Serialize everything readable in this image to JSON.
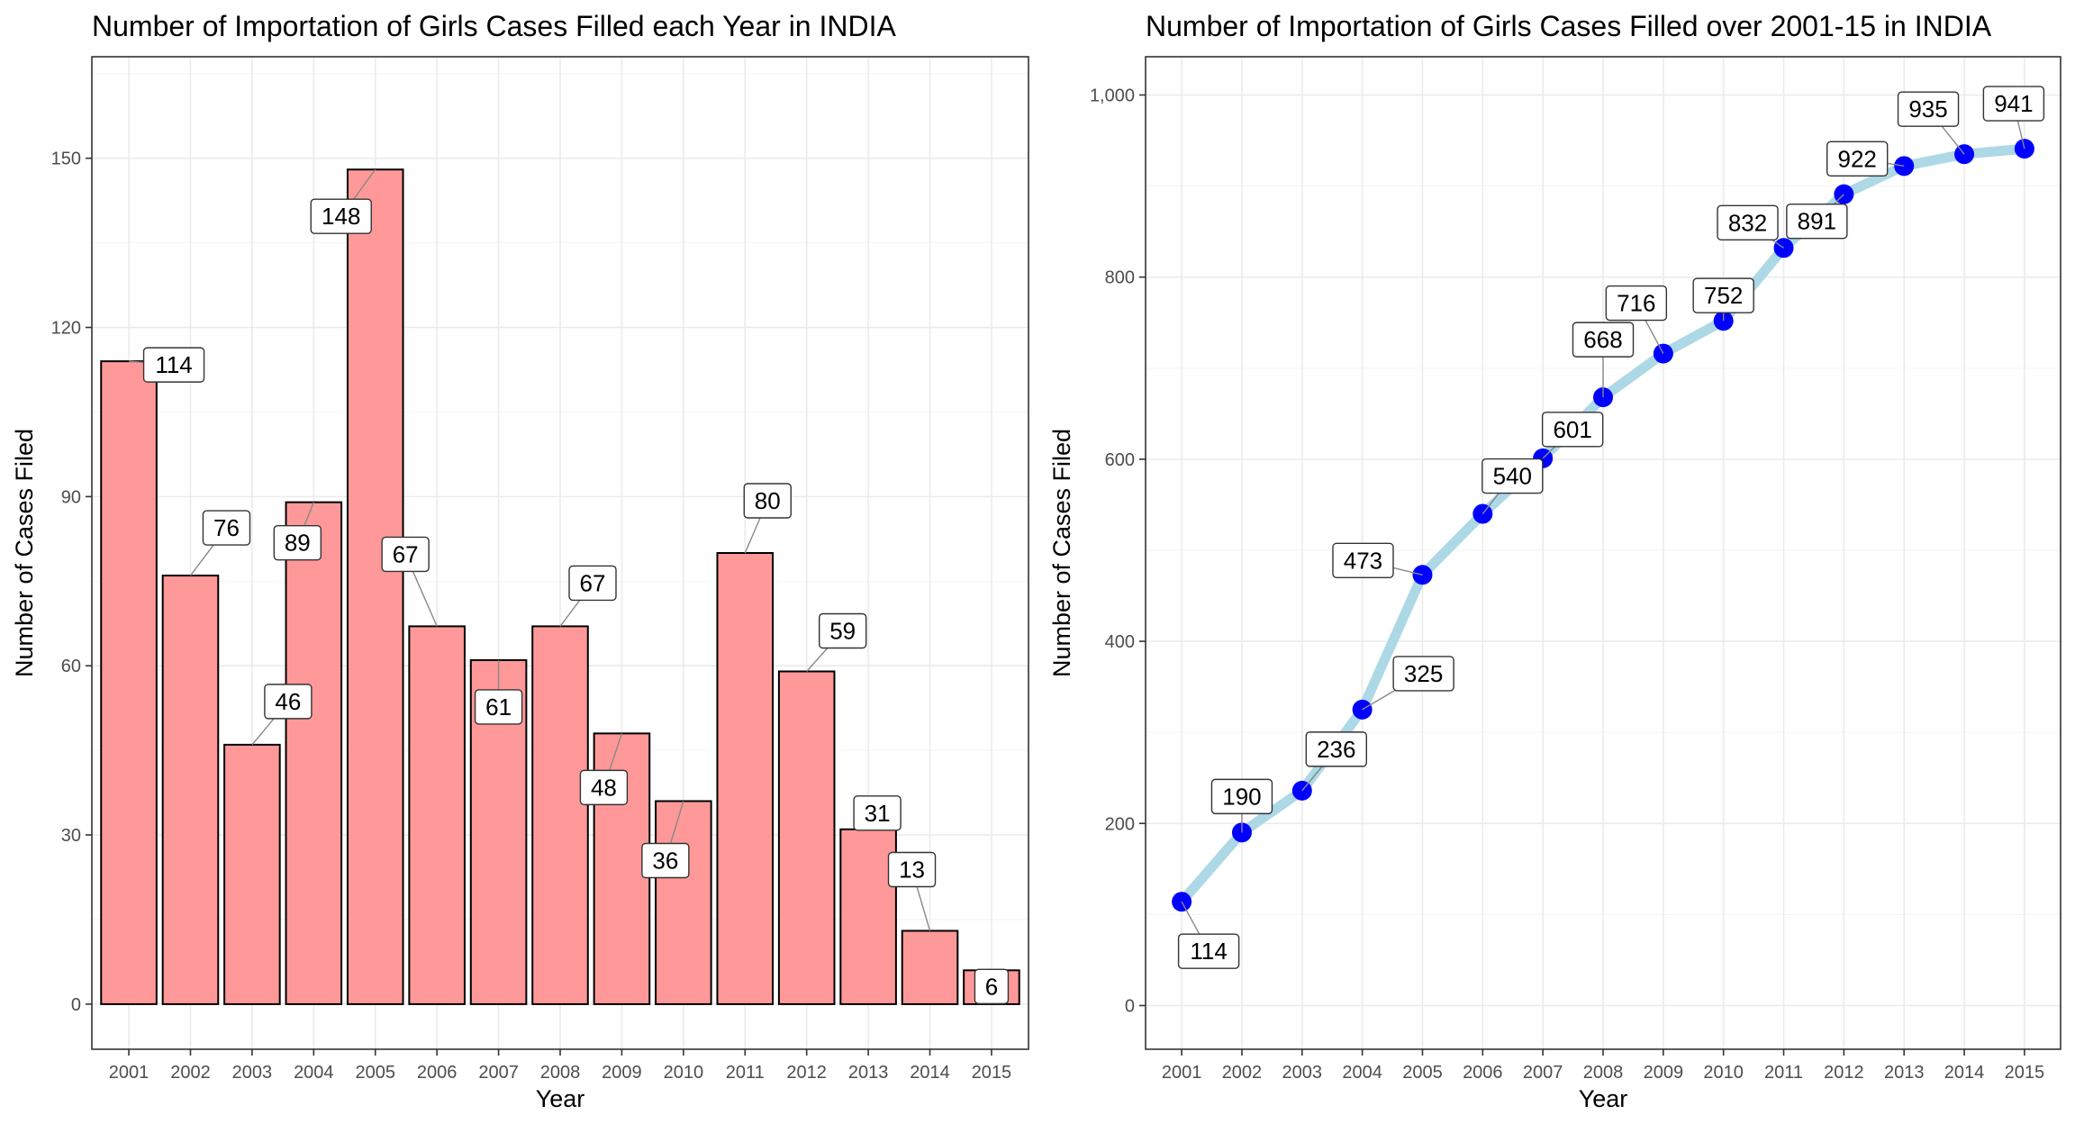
{
  "chart_data": [
    {
      "type": "bar",
      "title": "Number of Importation of Girls Cases Filled each Year in INDIA",
      "xlabel": "Year",
      "ylabel": "Number of Cases Filed",
      "categories": [
        "2001",
        "2002",
        "2003",
        "2004",
        "2005",
        "2006",
        "2007",
        "2008",
        "2009",
        "2010",
        "2011",
        "2012",
        "2013",
        "2014",
        "2015"
      ],
      "values": [
        114,
        76,
        46,
        89,
        148,
        67,
        61,
        67,
        48,
        36,
        80,
        59,
        31,
        13,
        6
      ],
      "data_labels": [
        "114",
        "76",
        "46",
        "89",
        "148",
        "67",
        "61",
        "67",
        "48",
        "36",
        "80",
        "59",
        "31",
        "13",
        "6"
      ],
      "ylim": [
        -8,
        168
      ],
      "yticks": [
        0,
        30,
        60,
        90,
        120,
        150
      ],
      "ytick_labels": [
        "0",
        "30",
        "60",
        "90",
        "120",
        "150"
      ],
      "bar_color": "#ff9999",
      "grid": true,
      "legend": "none"
    },
    {
      "type": "line",
      "title": "Number of Importation of Girls Cases Filled over 2001-15 in INDIA",
      "xlabel": "Year",
      "ylabel": "Number of Cases Filed",
      "categories": [
        "2001",
        "2002",
        "2003",
        "2004",
        "2005",
        "2006",
        "2007",
        "2008",
        "2009",
        "2010",
        "2011",
        "2012",
        "2013",
        "2014",
        "2015"
      ],
      "values": [
        114,
        190,
        236,
        325,
        473,
        540,
        601,
        668,
        716,
        752,
        832,
        891,
        922,
        935,
        941
      ],
      "data_labels": [
        "114",
        "190",
        "236",
        "325",
        "473",
        "540",
        "601",
        "668",
        "716",
        "752",
        "832",
        "891",
        "922",
        "935",
        "941"
      ],
      "ylim": [
        -48,
        1042
      ],
      "yticks": [
        0,
        200,
        400,
        600,
        800,
        1000
      ],
      "ytick_labels": [
        "0",
        "200",
        "400",
        "600",
        "800",
        "1,000"
      ],
      "line_color": "#add8e6",
      "point_color": "#0000ff",
      "grid": true,
      "legend": "none"
    }
  ]
}
